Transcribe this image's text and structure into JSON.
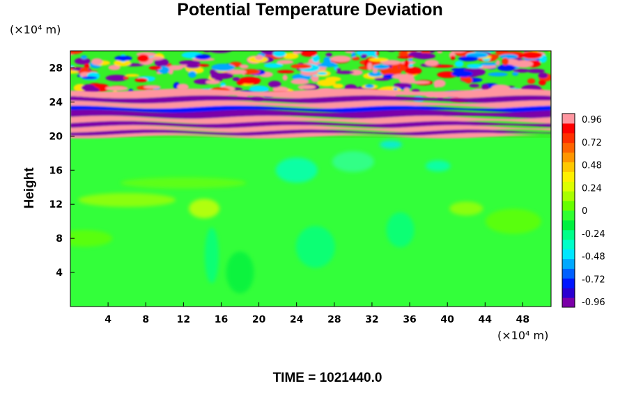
{
  "chart_data": {
    "type": "heatmap",
    "title": "Potential Temperature Deviation",
    "ylabel": "Height",
    "xunit": "(×10⁴ m)",
    "yunit": "(×10⁴ m)",
    "footer": "TIME = 1021440.0",
    "xlim": [
      0,
      51
    ],
    "ylim": [
      0,
      30
    ],
    "xticks": [
      4,
      8,
      12,
      16,
      20,
      24,
      28,
      32,
      36,
      40,
      44,
      48
    ],
    "yticks": [
      4,
      8,
      12,
      16,
      20,
      24,
      28
    ],
    "colorbar": {
      "range": [
        -0.96,
        0.96
      ],
      "ticks": [
        "0.96",
        "0.72",
        "0.48",
        "0.24",
        "0",
        "-0.24",
        "-0.48",
        "-0.72",
        "-0.96"
      ],
      "colors": [
        "#7b00a8",
        "#2a00d0",
        "#0016ff",
        "#0060ff",
        "#00a8ff",
        "#00e6ff",
        "#00ffc8",
        "#00ff88",
        "#00f040",
        "#30ff30",
        "#66ff00",
        "#a8ff00",
        "#dcff00",
        "#fff000",
        "#ffc800",
        "#ff9600",
        "#ff6400",
        "#ff3000",
        "#ff0000",
        "#ff96a0"
      ]
    }
  }
}
